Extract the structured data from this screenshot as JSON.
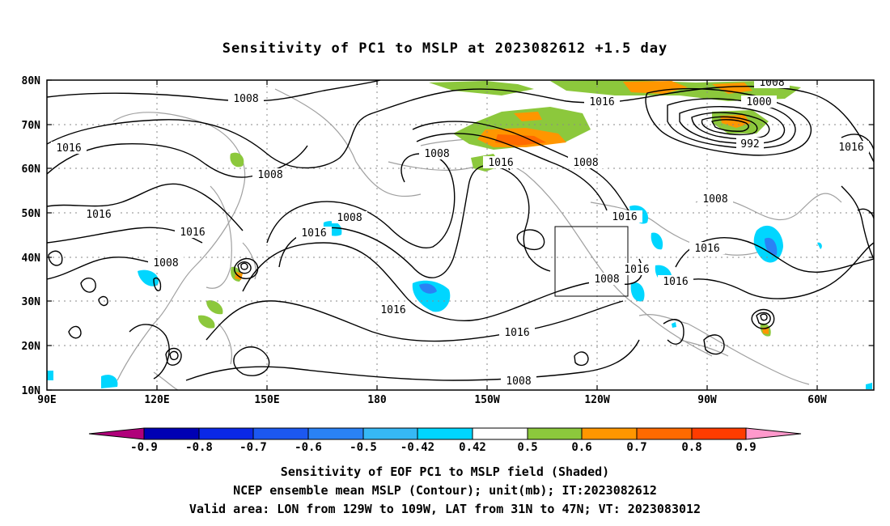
{
  "title": "Sensitivity of PC1 to MSLP at 2023082612 +1.5 day",
  "lat_labels": [
    "80N",
    "70N",
    "60N",
    "50N",
    "40N",
    "30N",
    "20N",
    "10N"
  ],
  "lon_labels": [
    "90E",
    "120E",
    "150E",
    "180",
    "150W",
    "120W",
    "90W",
    "60W"
  ],
  "contour_labels": [
    "1008",
    "1016",
    "1008",
    "1016",
    "1008",
    "1016",
    "1016",
    "1008",
    "1016",
    "1008",
    "1016",
    "1016",
    "1008",
    "1016",
    "1008",
    "1016",
    "1008",
    "1000",
    "992",
    "1016",
    "1008",
    "1016",
    "1016",
    "1008",
    "1016",
    "1008"
  ],
  "colorbar": {
    "labels": [
      "-0.9",
      "-0.8",
      "-0.7",
      "-0.6",
      "-0.5",
      "-0.42",
      "0.42",
      "0.5",
      "0.6",
      "0.7",
      "0.8",
      "0.9"
    ],
    "colors": [
      "#b0007a",
      "#0000b4",
      "#0a28e6",
      "#1c58f0",
      "#2a82f5",
      "#36b8f5",
      "#00d6ff",
      "#ffffff",
      "#8cc83c",
      "#ff9600",
      "#ff6a00",
      "#ff3c00",
      "#ff0000",
      "#ff99cc"
    ]
  },
  "caption": [
    "Sensitivity of EOF PC1 to MSLP field (Shaded)",
    "NCEP ensemble mean MSLP (Contour); unit(mb); IT:2023082612",
    "Valid area: LON from 129W to 109W, LAT from 31N to 47N; VT: 2023083012"
  ]
}
